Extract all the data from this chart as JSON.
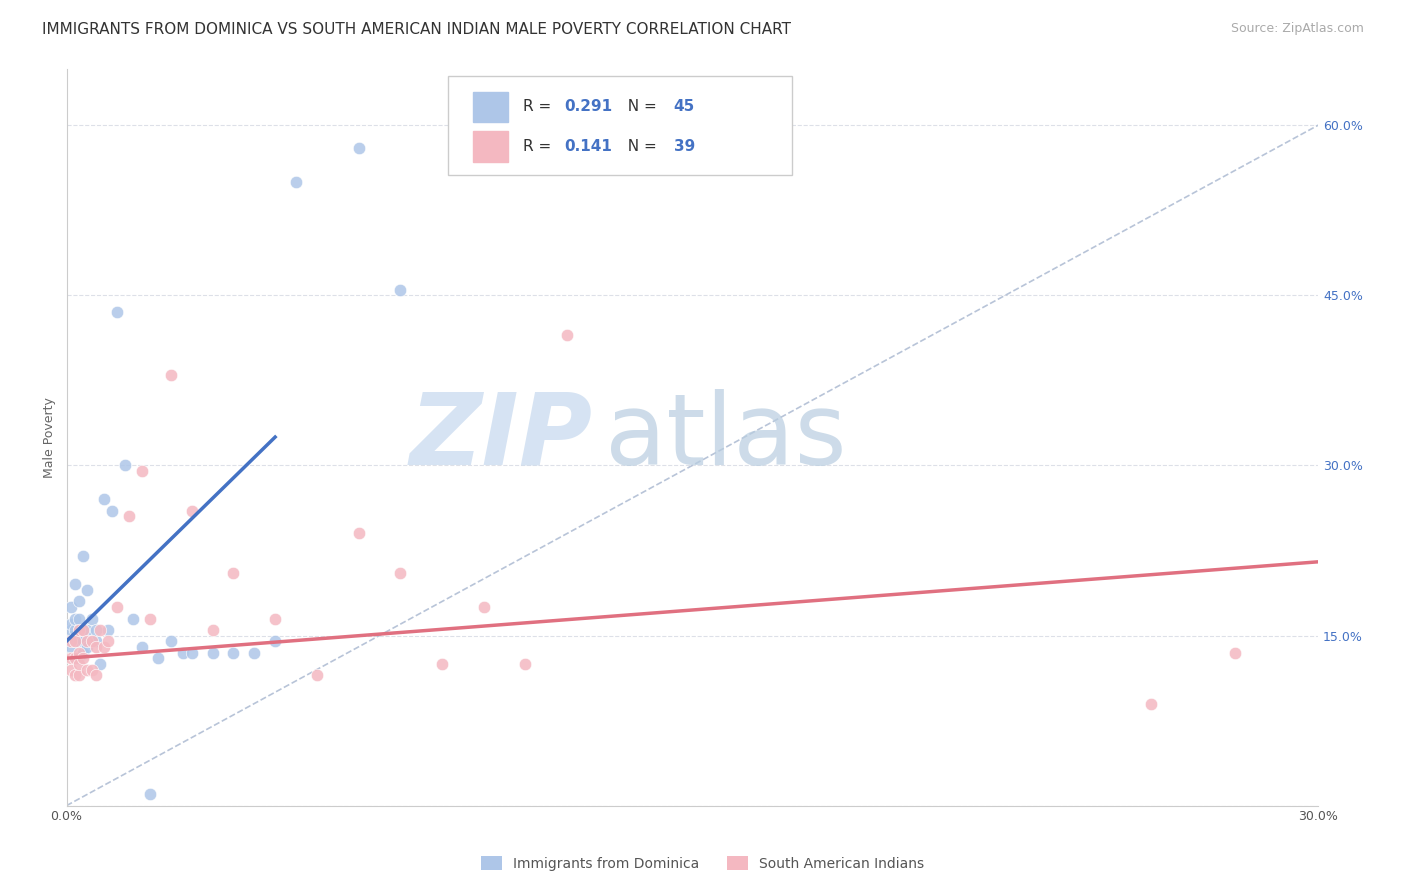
{
  "title": "IMMIGRANTS FROM DOMINICA VS SOUTH AMERICAN INDIAN MALE POVERTY CORRELATION CHART",
  "source": "Source: ZipAtlas.com",
  "ylabel": "Male Poverty",
  "xlim": [
    0.0,
    0.3
  ],
  "ylim": [
    0.0,
    0.65
  ],
  "x_ticks": [
    0.0,
    0.05,
    0.1,
    0.15,
    0.2,
    0.25,
    0.3
  ],
  "x_tick_labels": [
    "0.0%",
    "",
    "",
    "",
    "",
    "",
    "30.0%"
  ],
  "y_ticks": [
    0.0,
    0.15,
    0.3,
    0.45,
    0.6
  ],
  "y_tick_labels_right": [
    "",
    "15.0%",
    "30.0%",
    "45.0%",
    "60.0%"
  ],
  "blue_R": "0.291",
  "blue_N": "45",
  "pink_R": "0.141",
  "pink_N": "39",
  "blue_scatter_x": [
    0.001,
    0.001,
    0.001,
    0.001,
    0.002,
    0.002,
    0.002,
    0.002,
    0.002,
    0.003,
    0.003,
    0.003,
    0.003,
    0.003,
    0.004,
    0.004,
    0.004,
    0.004,
    0.005,
    0.005,
    0.005,
    0.006,
    0.006,
    0.007,
    0.007,
    0.008,
    0.009,
    0.01,
    0.011,
    0.012,
    0.014,
    0.016,
    0.018,
    0.02,
    0.022,
    0.025,
    0.028,
    0.03,
    0.035,
    0.04,
    0.045,
    0.05,
    0.055,
    0.07,
    0.08
  ],
  "blue_scatter_y": [
    0.14,
    0.155,
    0.16,
    0.175,
    0.13,
    0.145,
    0.155,
    0.165,
    0.195,
    0.13,
    0.145,
    0.155,
    0.165,
    0.18,
    0.135,
    0.145,
    0.155,
    0.22,
    0.14,
    0.155,
    0.19,
    0.145,
    0.165,
    0.145,
    0.155,
    0.125,
    0.27,
    0.155,
    0.26,
    0.435,
    0.3,
    0.165,
    0.14,
    0.01,
    0.13,
    0.145,
    0.135,
    0.135,
    0.135,
    0.135,
    0.135,
    0.145,
    0.55,
    0.58,
    0.455
  ],
  "pink_scatter_x": [
    0.001,
    0.001,
    0.001,
    0.002,
    0.002,
    0.002,
    0.003,
    0.003,
    0.003,
    0.003,
    0.004,
    0.004,
    0.005,
    0.005,
    0.006,
    0.006,
    0.007,
    0.007,
    0.008,
    0.009,
    0.01,
    0.012,
    0.015,
    0.018,
    0.02,
    0.025,
    0.03,
    0.035,
    0.04,
    0.05,
    0.06,
    0.07,
    0.08,
    0.09,
    0.1,
    0.11,
    0.12,
    0.26,
    0.28
  ],
  "pink_scatter_y": [
    0.12,
    0.13,
    0.145,
    0.115,
    0.13,
    0.145,
    0.115,
    0.125,
    0.135,
    0.155,
    0.13,
    0.155,
    0.12,
    0.145,
    0.12,
    0.145,
    0.115,
    0.14,
    0.155,
    0.14,
    0.145,
    0.175,
    0.255,
    0.295,
    0.165,
    0.38,
    0.26,
    0.155,
    0.205,
    0.165,
    0.115,
    0.24,
    0.205,
    0.125,
    0.175,
    0.125,
    0.415,
    0.09,
    0.135
  ],
  "blue_line_x": [
    0.0,
    0.05
  ],
  "blue_line_y": [
    0.145,
    0.325
  ],
  "pink_line_x": [
    0.0,
    0.3
  ],
  "pink_line_y": [
    0.13,
    0.215
  ],
  "ref_line_x": [
    0.0,
    0.325
  ],
  "ref_line_y": [
    0.0,
    0.65
  ],
  "watermark_zip": "ZIP",
  "watermark_atlas": "atlas",
  "watermark_color_zip": "#c8d8ec",
  "watermark_color_atlas": "#b8cde0",
  "grid_color": "#dde0e8",
  "background_color": "#ffffff",
  "blue_scatter_color": "#aec6e8",
  "pink_scatter_color": "#f4b8c1",
  "blue_line_color": "#4472c4",
  "pink_line_color": "#e07080",
  "ref_line_color": "#b8c4d8",
  "value_color": "#4472c4",
  "marker_size": 80,
  "title_fontsize": 11,
  "axis_label_fontsize": 9,
  "tick_fontsize": 9,
  "legend_fontsize": 11,
  "series1_label": "Immigrants from Dominica",
  "series2_label": "South American Indians"
}
